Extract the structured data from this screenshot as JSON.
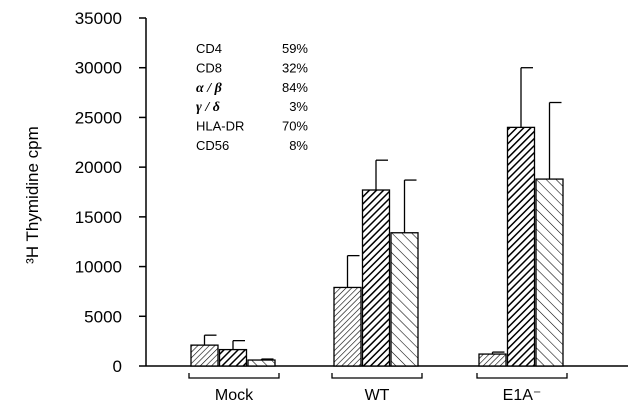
{
  "chart_data": {
    "type": "bar",
    "ylabel": "³H Thymidine cpm",
    "ylim": [
      0,
      35000
    ],
    "yticks": [
      "0",
      "5000",
      "10000",
      "15000",
      "20000",
      "25000",
      "30000",
      "35000"
    ],
    "categories": [
      "Mock",
      "WT",
      "E1A⁻"
    ],
    "series": [
      {
        "values": [
          2100,
          7900,
          1200
        ],
        "errors": [
          1000,
          3200,
          200
        ],
        "pattern": "fine-hatch",
        "color": "#000000"
      },
      {
        "values": [
          1650,
          17700,
          24000
        ],
        "errors": [
          900,
          3000,
          6000
        ],
        "pattern": "dense-hatch",
        "color": "#000000"
      },
      {
        "values": [
          600,
          13400,
          18800
        ],
        "errors": [
          100,
          5300,
          7700
        ],
        "pattern": "sparse-back-hatch",
        "color": "#000000"
      }
    ],
    "annotation": [
      {
        "label": "CD4",
        "value": "59%"
      },
      {
        "label": "CD8",
        "value": "32%"
      },
      {
        "label": "α / β",
        "value": "84%",
        "greek": true
      },
      {
        "label": "γ / δ",
        "value": "3%",
        "greek": true
      },
      {
        "label": "HLA-DR",
        "value": "70%"
      },
      {
        "label": "CD56",
        "value": "8%"
      }
    ],
    "grid": false,
    "legend": "none"
  }
}
